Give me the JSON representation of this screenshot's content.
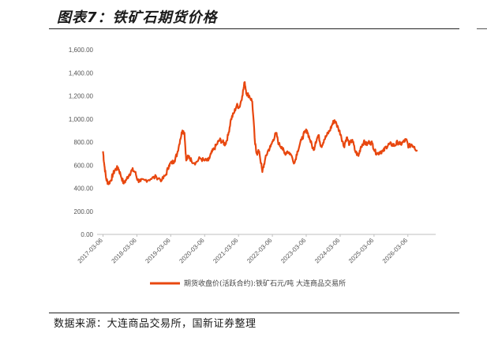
{
  "title": "图表7：铁矿石期货价格",
  "source": "数据来源：大连商品交易所，国新证券整理",
  "chart_data": {
    "type": "line",
    "title": "",
    "xlabel": "",
    "ylabel": "",
    "ylim": [
      0,
      1600
    ],
    "yticks": [
      "1,600.00",
      "1,400.00",
      "1,200.00",
      "1,000.00",
      "800.00",
      "600.00",
      "400.00",
      "200.00",
      "0.00"
    ],
    "xticks": [
      "2017-03-06",
      "2018-03-06",
      "2019-03-06",
      "2020-03-06",
      "2021-03-06",
      "2022-03-06",
      "2023-03-06",
      "2024-03-06",
      "2025-03-06",
      "2026-03-06"
    ],
    "legend_position": "bottom",
    "grid": false,
    "series": [
      {
        "name": "期货收盘价(活跃合约):铁矿石元/吨 大连商品交易所",
        "color": "#e8470f",
        "x": [
          "2017-03-06",
          "2017-03-20",
          "2017-04-10",
          "2017-05-01",
          "2017-06-01",
          "2017-06-20",
          "2017-07-15",
          "2017-08-15",
          "2017-09-10",
          "2017-10-15",
          "2017-11-15",
          "2017-12-15",
          "2018-01-15",
          "2018-02-15",
          "2018-03-15",
          "2018-04-15",
          "2018-06-01",
          "2018-08-01",
          "2018-10-01",
          "2018-12-01",
          "2019-01-15",
          "2019-02-15",
          "2019-03-15",
          "2019-04-15",
          "2019-05-15",
          "2019-06-15",
          "2019-07-10",
          "2019-08-01",
          "2019-08-20",
          "2019-09-15",
          "2019-10-15",
          "2019-12-01",
          "2020-01-15",
          "2020-03-01",
          "2020-04-15",
          "2020-05-15",
          "2020-06-15",
          "2020-07-15",
          "2020-08-15",
          "2020-09-15",
          "2020-10-15",
          "2020-11-15",
          "2020-12-15",
          "2021-01-15",
          "2021-02-15",
          "2021-03-15",
          "2021-04-15",
          "2021-05-12",
          "2021-06-01",
          "2021-07-01",
          "2021-08-01",
          "2021-09-01",
          "2021-09-20",
          "2021-10-15",
          "2021-11-18",
          "2021-12-15",
          "2022-01-15",
          "2022-02-15",
          "2022-03-15",
          "2022-04-15",
          "2022-05-15",
          "2022-06-15",
          "2022-07-15",
          "2022-08-15",
          "2022-09-15",
          "2022-10-31",
          "2022-12-01",
          "2023-01-15",
          "2023-02-15",
          "2023-03-15",
          "2023-04-15",
          "2023-05-25",
          "2023-06-15",
          "2023-07-15",
          "2023-08-15",
          "2023-09-15",
          "2023-10-15",
          "2023-11-15",
          "2023-12-15",
          "2024-01-05",
          "2024-02-15",
          "2024-03-15",
          "2024-04-15",
          "2024-05-15",
          "2024-06-15",
          "2024-07-15",
          "2024-08-15",
          "2024-09-20",
          "2024-10-15",
          "2024-11-15",
          "2024-12-15",
          "2025-01-15",
          "2025-02-15",
          "2025-03-15",
          "2025-04-15",
          "2025-05-15",
          "2025-06-15",
          "2025-07-15",
          "2025-08-15",
          "2025-09-15",
          "2025-10-15",
          "2025-11-15",
          "2025-12-15",
          "2026-01-15",
          "2026-02-15",
          "2026-03-15",
          "2026-04-15",
          "2026-05-15",
          "2026-06-15"
        ],
        "values": [
          720,
          600,
          480,
          440,
          470,
          520,
          560,
          580,
          520,
          440,
          480,
          520,
          560,
          540,
          470,
          460,
          470,
          480,
          500,
          470,
          520,
          600,
          620,
          640,
          700,
          820,
          900,
          880,
          640,
          680,
          640,
          620,
          660,
          640,
          640,
          700,
          740,
          780,
          820,
          800,
          780,
          860,
          1000,
          1050,
          1120,
          1100,
          1200,
          1320,
          1220,
          1200,
          1150,
          780,
          700,
          720,
          540,
          640,
          720,
          760,
          820,
          880,
          780,
          760,
          700,
          720,
          700,
          620,
          720,
          820,
          880,
          900,
          820,
          730,
          800,
          860,
          760,
          820,
          860,
          900,
          960,
          990,
          920,
          860,
          760,
          840,
          780,
          820,
          720,
          680,
          760,
          800,
          780,
          800,
          790,
          720,
          700,
          720,
          720,
          760,
          780,
          780,
          770,
          800,
          780,
          800,
          820,
          760,
          780,
          760,
          720
        ]
      }
    ]
  }
}
